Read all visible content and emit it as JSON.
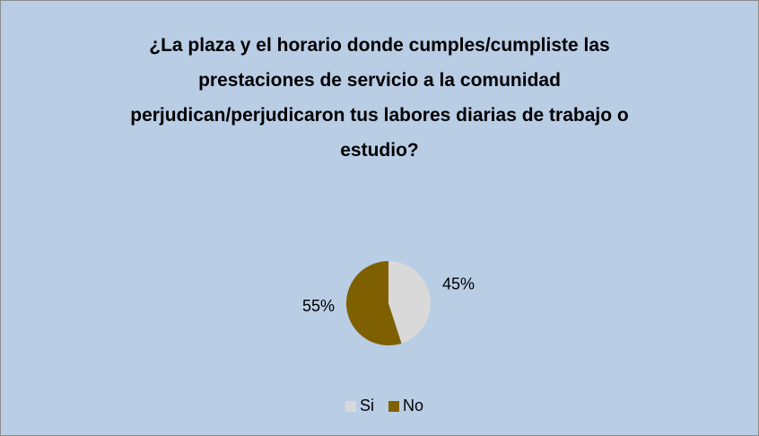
{
  "chart_data": {
    "type": "pie",
    "title": "¿La plaza y el horario donde cumples/cumpliste las prestaciones de servicio a la comunidad perjudican/perjudicaron tus labores diarias de trabajo o estudio?",
    "categories": [
      "Si",
      "No"
    ],
    "values": [
      45,
      55
    ],
    "value_labels": [
      "45%",
      "55%"
    ],
    "colors": [
      "#d9d9d9",
      "#7f6000"
    ],
    "legend": "bottom"
  }
}
